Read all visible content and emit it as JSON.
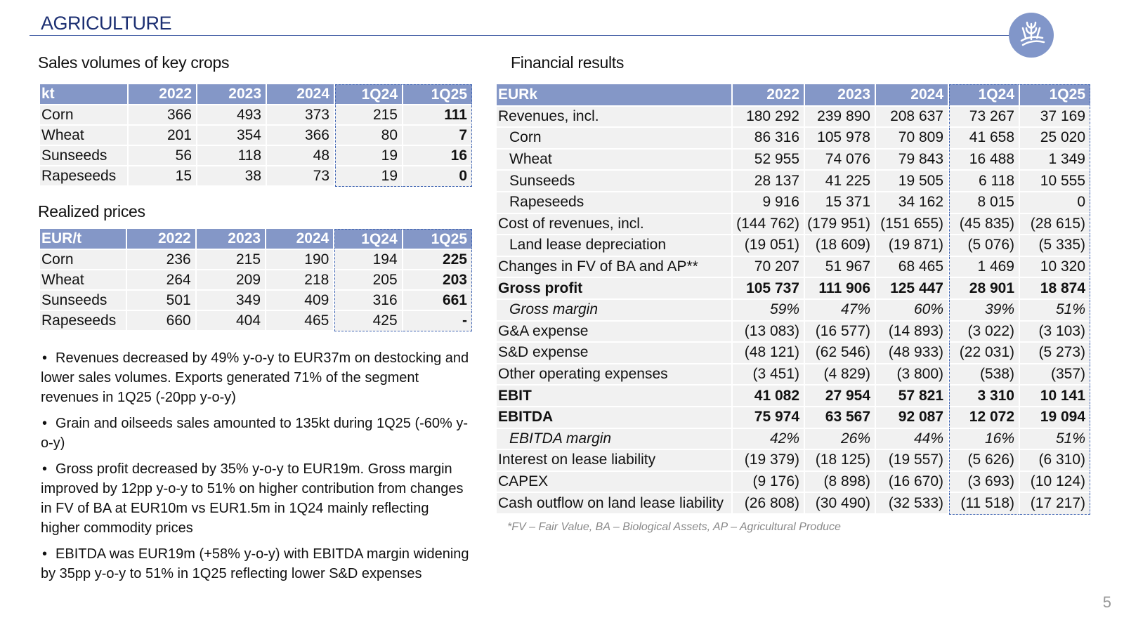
{
  "header": {
    "title": "AGRICULTURE"
  },
  "page_number": "5",
  "sales_volumes": {
    "title": "Sales volumes of key crops",
    "columns": [
      "kt",
      "2022",
      "2023",
      "2024",
      "1Q24",
      "1Q25"
    ],
    "rows": [
      [
        "Corn",
        "366",
        "493",
        "373",
        "215",
        "111"
      ],
      [
        "Wheat",
        "201",
        "354",
        "366",
        "80",
        "7"
      ],
      [
        "Sunseeds",
        "56",
        "118",
        "48",
        "19",
        "16"
      ],
      [
        "Rapeseeds",
        "15",
        "38",
        "73",
        "19",
        "0"
      ]
    ]
  },
  "realized_prices": {
    "title": "Realized prices",
    "columns": [
      "EUR/t",
      "2022",
      "2023",
      "2024",
      "1Q24",
      "1Q25"
    ],
    "rows": [
      [
        "Corn",
        "236",
        "215",
        "190",
        "194",
        "225"
      ],
      [
        "Wheat",
        "264",
        "209",
        "218",
        "205",
        "203"
      ],
      [
        "Sunseeds",
        "501",
        "349",
        "409",
        "316",
        "661"
      ],
      [
        "Rapeseeds",
        "660",
        "404",
        "465",
        "425",
        "-"
      ]
    ]
  },
  "bullets": [
    "Revenues decreased by 49% y-o-y to EUR37m on destocking and lower sales volumes. Exports generated 71% of the segment revenues in 1Q25 (-20pp y-o-y)",
    "Grain and oilseeds sales amounted to 135kt during 1Q25 (-60% y-o-y)",
    "Gross profit decreased by 35% y-o-y to EUR19m. Gross margin improved by 12pp y-o-y to 51% on higher contribution from changes in FV of BA at EUR10m vs EUR1.5m in 1Q24 mainly reflecting higher commodity prices",
    "EBITDA was EUR19m (+58% y-o-y) with EBITDA margin widening by 35pp y-o-y to 51% in 1Q25 reflecting lower S&D expenses"
  ],
  "financial_results": {
    "title": "Financial results",
    "columns": [
      "EURk",
      "2022",
      "2023",
      "2024",
      "1Q24",
      "1Q25"
    ],
    "rows": [
      [
        "Revenues, incl.",
        "180 292",
        "239 890",
        "208 637",
        "73 267",
        "37 169"
      ],
      [
        "Corn",
        "86 316",
        "105 978",
        "70 809",
        "41 658",
        "25 020"
      ],
      [
        "Wheat",
        "52 955",
        "74 076",
        "79 843",
        "16 488",
        "1 349"
      ],
      [
        "Sunseeds",
        "28 137",
        "41 225",
        "19 505",
        "6 118",
        "10 555"
      ],
      [
        "Rapeseeds",
        "9 916",
        "15 371",
        "34 162",
        "8 015",
        "0"
      ],
      [
        "Cost of revenues, incl.",
        "(144 762)",
        "(179 951)",
        "(151 655)",
        "(45 835)",
        "(28 615)"
      ],
      [
        "Land lease depreciation",
        "(19 051)",
        "(18 609)",
        "(19 871)",
        "(5 076)",
        "(5 335)"
      ],
      [
        "Changes in FV of BA and AP**",
        "70 207",
        "51 967",
        "68 465",
        "1 469",
        "10 320"
      ],
      [
        "Gross profit",
        "105 737",
        "111 906",
        "125 447",
        "28 901",
        "18 874"
      ],
      [
        "Gross margin",
        "59%",
        "47%",
        "60%",
        "39%",
        "51%"
      ],
      [
        "G&A expense",
        "(13 083)",
        "(16 577)",
        "(14 893)",
        "(3 022)",
        "(3 103)"
      ],
      [
        "S&D expense",
        "(48 121)",
        "(62 546)",
        "(48 933)",
        "(22 031)",
        "(5 273)"
      ],
      [
        "Other operating expenses",
        "(3 451)",
        "(4 829)",
        "(3 800)",
        "(538)",
        "(357)"
      ],
      [
        "EBIT",
        "41 082",
        "27 954",
        "57 821",
        "3 310",
        "10 141"
      ],
      [
        "EBITDA",
        "75 974",
        "63 567",
        "92 087",
        "12 072",
        "19 094"
      ],
      [
        "EBITDA margin",
        "42%",
        "26%",
        "44%",
        "16%",
        "51%"
      ],
      [
        "Interest on lease liability",
        "(19 379)",
        "(18 125)",
        "(19 557)",
        "(5 626)",
        "(6 310)"
      ],
      [
        "CAPEX",
        "(9 176)",
        "(8 898)",
        "(16 670)",
        "(3 693)",
        "(10 124)"
      ],
      [
        "Cash outflow on land lease liability",
        "(26 808)",
        "(30 490)",
        "(32 533)",
        "(11 518)",
        "(17 217)"
      ]
    ],
    "footnote": "*FV – Fair Value, BA – Biological Assets, AP – Agricultural Produce"
  }
}
